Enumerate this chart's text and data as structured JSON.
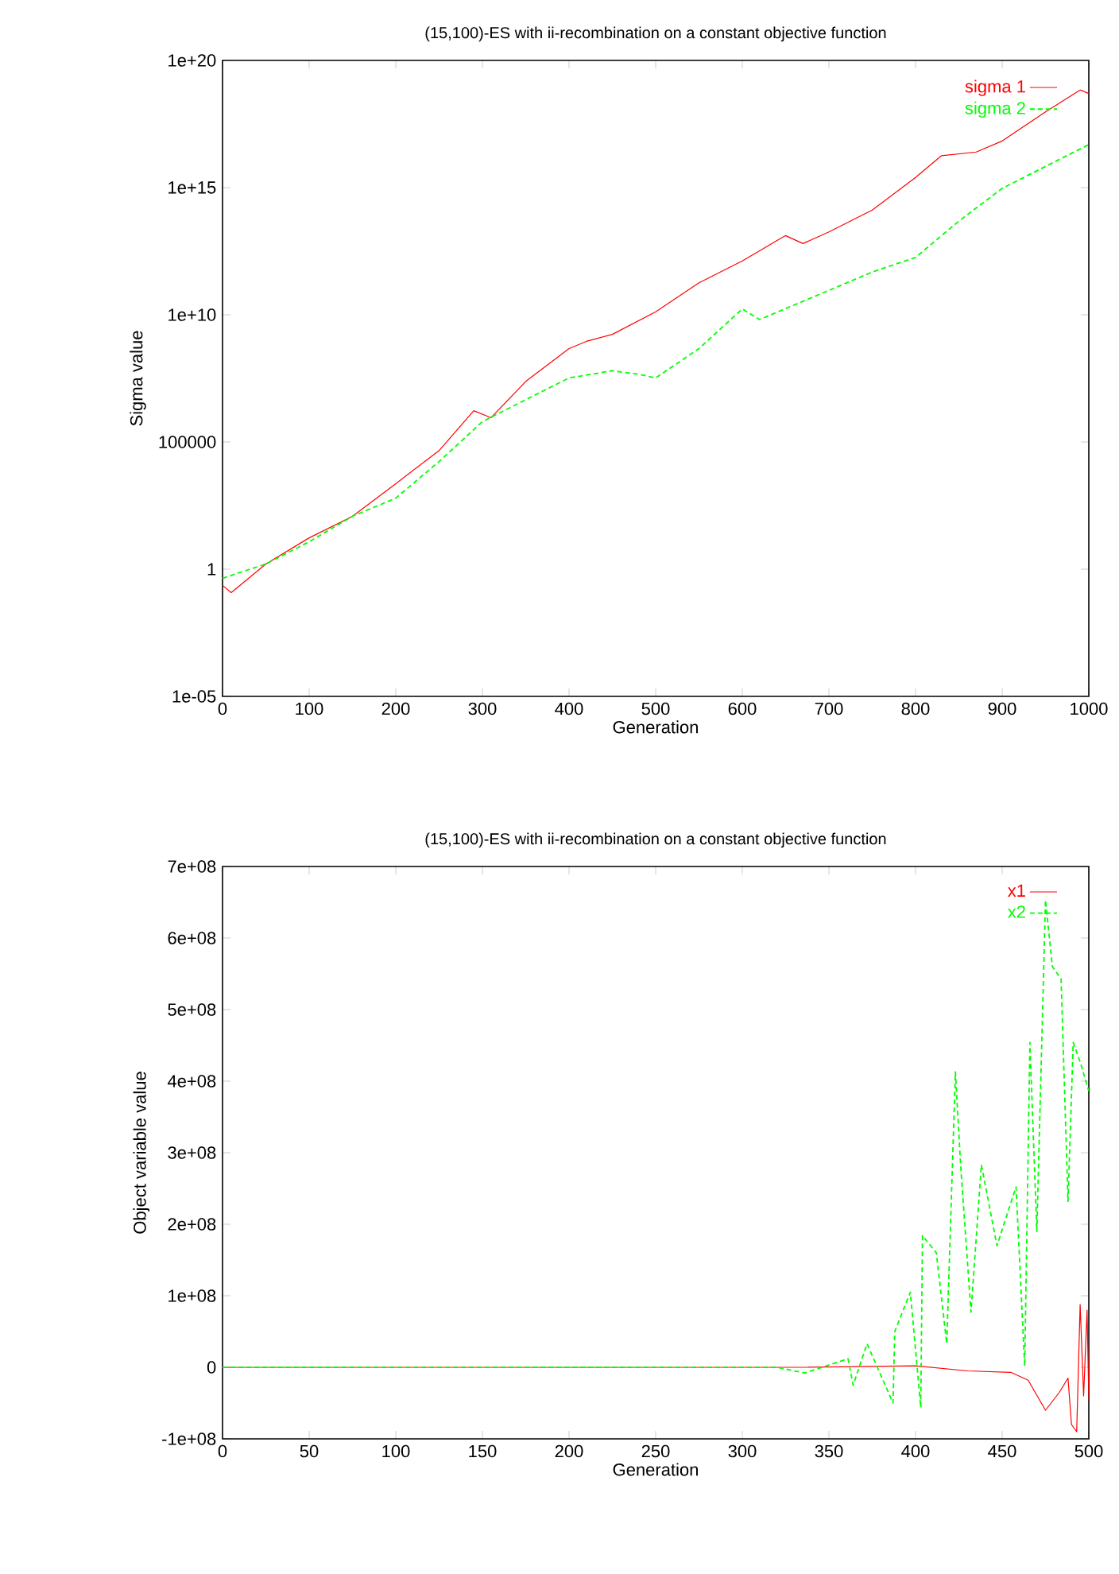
{
  "chart_data": [
    {
      "type": "line",
      "title": "(15,100)-ES with ii-recombination on a constant objective function",
      "xlabel": "Generation",
      "ylabel": "Sigma value",
      "log": "y",
      "grid": false,
      "legend": "top right",
      "marker": "none",
      "xlim": [
        0,
        1000
      ],
      "xticks": [
        0,
        100,
        200,
        300,
        400,
        500,
        600,
        700,
        800,
        900,
        1000
      ],
      "ylim": [
        1e-05,
        1e+20
      ],
      "yticks": [
        {
          "value": 1e-05,
          "label": "1e-05"
        },
        1,
        100000,
        {
          "value": 10000000000.0,
          "label": "1e+10"
        },
        {
          "value": 1000000000000000.0,
          "label": "1e+15"
        },
        {
          "value": 1e+20,
          "label": "1e+20"
        }
      ],
      "series": [
        {
          "name": "sigma 1",
          "color": "#ff0000",
          "line_style": "solid",
          "x": [
            0,
            10,
            50,
            100,
            150,
            200,
            250,
            290,
            310,
            350,
            400,
            420,
            450,
            500,
            550,
            600,
            650,
            670,
            700,
            750,
            800,
            830,
            870,
            900,
            950,
            990,
            1000
          ],
          "values": [
            0.23,
            0.12,
            1.6,
            17,
            120,
            2300,
            46000,
            1700000.0,
            900000.0,
            24000000.0,
            470000000.0,
            900000000.0,
            1700000000.0,
            13000000000.0,
            180000000000.0,
            1300000000000.0,
            13000000000000.0,
            6300000000000.0,
            18000000000000.0,
            130000000000000.0,
            2500000000000000.0,
            1.8e+16,
            2.5e+16,
            6.8e+16,
            9.5e+17,
            6.9e+18,
            5e+18
          ]
        },
        {
          "name": "sigma 2",
          "color": "#00ff00",
          "line_style": "dashed",
          "x": [
            0,
            50,
            100,
            150,
            200,
            250,
            300,
            350,
            400,
            450,
            480,
            500,
            550,
            600,
            620,
            700,
            750,
            800,
            850,
            900,
            950,
            1000
          ],
          "values": [
            0.44,
            1.6,
            12,
            120,
            620,
            17000,
            630000.0,
            4600000.0,
            33000000.0,
            63000000.0,
            46000000.0,
            33000000.0,
            470000000.0,
            17000000000.0,
            6500000000.0,
            91000000000.0,
            480000000000.0,
            1800000000000.0,
            48000000000000.0,
            930000000000000.0,
            6800000000000000.0,
            4.9e+16
          ]
        }
      ]
    },
    {
      "type": "line",
      "title": "(15,100)-ES with ii-recombination on a constant objective function",
      "xlabel": "Generation",
      "ylabel": "Object variable value",
      "grid": false,
      "legend": "top right",
      "marker": "none",
      "xlim": [
        0,
        500
      ],
      "xticks": [
        0,
        50,
        100,
        150,
        200,
        250,
        300,
        350,
        400,
        450,
        500
      ],
      "ylim": [
        -100000000.0,
        700000000.0
      ],
      "yticks": [
        {
          "value": -100000000.0,
          "label": "-1e+08"
        },
        0,
        {
          "value": 100000000.0,
          "label": "1e+08"
        },
        {
          "value": 200000000.0,
          "label": "2e+08"
        },
        {
          "value": 300000000.0,
          "label": "3e+08"
        },
        {
          "value": 400000000.0,
          "label": "4e+08"
        },
        {
          "value": 500000000.0,
          "label": "5e+08"
        },
        {
          "value": 600000000.0,
          "label": "6e+08"
        },
        {
          "value": 700000000.0,
          "label": "7e+08"
        }
      ],
      "series": [
        {
          "name": "x1",
          "color": "#ff0000",
          "line_style": "solid",
          "x": [
            0,
            330,
            400,
            430,
            455,
            465,
            475,
            483,
            488,
            490,
            493,
            495,
            497,
            499,
            500
          ],
          "values": [
            0,
            0,
            2000000.0,
            -5000000.0,
            -7000000.0,
            -18000000.0,
            -60000000.0,
            -35000000.0,
            -15000000.0,
            -80000000.0,
            -90000000.0,
            88000000.0,
            -40000000.0,
            80000000.0,
            -45000000.0
          ]
        },
        {
          "name": "x2",
          "color": "#00ff00",
          "line_style": "dashed",
          "x": [
            0,
            320,
            336,
            361,
            364,
            372,
            387,
            388,
            397,
            403,
            404,
            412,
            418,
            423,
            426,
            432,
            438,
            447,
            458,
            463,
            466,
            470,
            475,
            479,
            484,
            488,
            491,
            495,
            500
          ],
          "values": [
            0,
            0,
            -8000000.0,
            12000000.0,
            -25000000.0,
            33000000.0,
            -50000000.0,
            50000000.0,
            105000000.0,
            -56000000.0,
            184000000.0,
            160000000.0,
            33000000.0,
            413000000.0,
            283000000.0,
            77000000.0,
            283000000.0,
            170000000.0,
            252000000.0,
            2000000.0,
            454000000.0,
            190000000.0,
            653000000.0,
            560000000.0,
            543000000.0,
            232000000.0,
            454000000.0,
            427000000.0,
            386000000.0
          ]
        }
      ]
    }
  ]
}
